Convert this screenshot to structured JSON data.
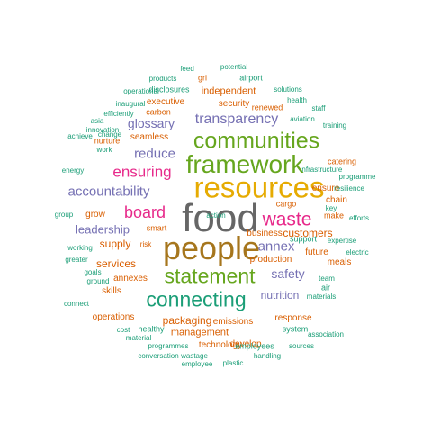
{
  "word_cloud": {
    "palette": {
      "gray": "#666666",
      "gold": "#a6761d",
      "amber": "#e6ab02",
      "green": "#66a61e",
      "magenta": "#e7298a",
      "purple": "#7570b3",
      "orange": "#d95f02",
      "teal": "#1b9e77"
    },
    "words": [
      {
        "text": "food",
        "color": "gray"
      },
      {
        "text": "people",
        "color": "gold"
      },
      {
        "text": "resources",
        "color": "amber"
      },
      {
        "text": "framework",
        "color": "green"
      },
      {
        "text": "communities",
        "color": "green"
      },
      {
        "text": "connecting",
        "color": "teal"
      },
      {
        "text": "statement",
        "color": "green"
      },
      {
        "text": "waste",
        "color": "magenta"
      },
      {
        "text": "board",
        "color": "magenta"
      },
      {
        "text": "ensuring",
        "color": "magenta"
      },
      {
        "text": "transparency",
        "color": "purple"
      },
      {
        "text": "accountability",
        "color": "purple"
      },
      {
        "text": "annex",
        "color": "purple"
      },
      {
        "text": "reduce",
        "color": "purple"
      },
      {
        "text": "glossary",
        "color": "purple"
      },
      {
        "text": "leadership",
        "color": "purple"
      },
      {
        "text": "safety",
        "color": "purple"
      },
      {
        "text": "nutrition",
        "color": "purple"
      },
      {
        "text": "customers",
        "color": "orange"
      },
      {
        "text": "supply",
        "color": "orange"
      },
      {
        "text": "services",
        "color": "orange"
      },
      {
        "text": "packaging",
        "color": "orange"
      },
      {
        "text": "management",
        "color": "orange"
      },
      {
        "text": "independent",
        "color": "orange"
      },
      {
        "text": "executive",
        "color": "orange"
      },
      {
        "text": "security",
        "color": "orange"
      },
      {
        "text": "emissions",
        "color": "orange"
      },
      {
        "text": "technology",
        "color": "orange"
      },
      {
        "text": "develop",
        "color": "orange"
      },
      {
        "text": "operations",
        "color": "orange"
      },
      {
        "text": "production",
        "color": "orange"
      },
      {
        "text": "ensure",
        "color": "orange"
      },
      {
        "text": "chain",
        "color": "orange"
      },
      {
        "text": "business",
        "color": "orange"
      },
      {
        "text": "future",
        "color": "orange"
      },
      {
        "text": "meals",
        "color": "orange"
      },
      {
        "text": "seamless",
        "color": "orange"
      },
      {
        "text": "response",
        "color": "orange"
      },
      {
        "text": "annexes",
        "color": "orange"
      },
      {
        "text": "skills",
        "color": "orange"
      },
      {
        "text": "grow",
        "color": "orange"
      },
      {
        "text": "smart",
        "color": "orange"
      },
      {
        "text": "make",
        "color": "orange"
      },
      {
        "text": "cargo",
        "color": "orange"
      },
      {
        "text": "renewed",
        "color": "orange"
      },
      {
        "text": "carbon",
        "color": "orange"
      },
      {
        "text": "nurture",
        "color": "orange"
      },
      {
        "text": "support",
        "color": "teal"
      },
      {
        "text": "air",
        "color": "teal"
      },
      {
        "text": "catering",
        "color": "orange"
      },
      {
        "text": "infrastructure",
        "color": "teal"
      },
      {
        "text": "gri",
        "color": "orange"
      },
      {
        "text": "airport",
        "color": "teal"
      },
      {
        "text": "employees",
        "color": "teal"
      },
      {
        "text": "system",
        "color": "teal"
      },
      {
        "text": "disclosures",
        "color": "teal"
      },
      {
        "text": "healthy",
        "color": "teal"
      },
      {
        "text": "risk",
        "color": "orange"
      },
      {
        "text": "feed",
        "color": "teal"
      },
      {
        "text": "potential",
        "color": "teal"
      },
      {
        "text": "products",
        "color": "teal"
      },
      {
        "text": "solutions",
        "color": "teal"
      },
      {
        "text": "operational",
        "color": "teal"
      },
      {
        "text": "health",
        "color": "teal"
      },
      {
        "text": "inaugural",
        "color": "teal"
      },
      {
        "text": "staff",
        "color": "teal"
      },
      {
        "text": "efficiently",
        "color": "teal"
      },
      {
        "text": "aviation",
        "color": "teal"
      },
      {
        "text": "asia",
        "color": "teal"
      },
      {
        "text": "training",
        "color": "teal"
      },
      {
        "text": "innovation",
        "color": "teal"
      },
      {
        "text": "achieve",
        "color": "teal"
      },
      {
        "text": "change",
        "color": "teal"
      },
      {
        "text": "work",
        "color": "teal"
      },
      {
        "text": "energy",
        "color": "teal"
      },
      {
        "text": "programme",
        "color": "teal"
      },
      {
        "text": "resilience",
        "color": "teal"
      },
      {
        "text": "key",
        "color": "teal"
      },
      {
        "text": "efforts",
        "color": "teal"
      },
      {
        "text": "group",
        "color": "teal"
      },
      {
        "text": "expertise",
        "color": "teal"
      },
      {
        "text": "electric",
        "color": "teal"
      },
      {
        "text": "working",
        "color": "teal"
      },
      {
        "text": "greater",
        "color": "teal"
      },
      {
        "text": "goals",
        "color": "teal"
      },
      {
        "text": "ground",
        "color": "teal"
      },
      {
        "text": "team",
        "color": "teal"
      },
      {
        "text": "connect",
        "color": "teal"
      },
      {
        "text": "materials",
        "color": "teal"
      },
      {
        "text": "cost",
        "color": "teal"
      },
      {
        "text": "material",
        "color": "teal"
      },
      {
        "text": "association",
        "color": "teal"
      },
      {
        "text": "programmes",
        "color": "teal"
      },
      {
        "text": "sources",
        "color": "teal"
      },
      {
        "text": "conversation",
        "color": "teal"
      },
      {
        "text": "wastage",
        "color": "teal"
      },
      {
        "text": "handling",
        "color": "teal"
      },
      {
        "text": "employee",
        "color": "teal"
      },
      {
        "text": "plastic",
        "color": "teal"
      },
      {
        "text": "action",
        "color": "teal"
      }
    ]
  }
}
